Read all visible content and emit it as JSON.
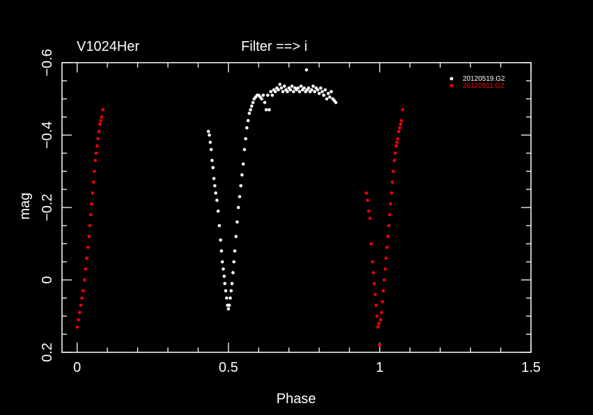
{
  "chart_data": {
    "type": "scatter",
    "title_left": "V1024Her",
    "title_center": "Filter ==> i",
    "xlabel": "Phase",
    "ylabel": "mag",
    "xlim": [
      -0.05,
      1.5
    ],
    "ylim": [
      0.2,
      -0.6
    ],
    "y_inverted": true,
    "x_ticks": [
      0,
      0.5,
      1,
      1.5
    ],
    "x_tick_labels": [
      "0",
      "0.5",
      "1",
      "1.5"
    ],
    "y_ticks": [
      0.2,
      0,
      -0.2,
      -0.4,
      -0.6
    ],
    "y_tick_labels": [
      "0.2",
      "0",
      "−0.2",
      "−0.4",
      "−0.6"
    ],
    "background": "#000000",
    "foreground": "#ffffff",
    "legend_position": "top-right",
    "series": [
      {
        "name": "20120519.G2",
        "color": "#ffffff",
        "points": [
          [
            0.434,
            -0.41
          ],
          [
            0.437,
            -0.4
          ],
          [
            0.44,
            -0.38
          ],
          [
            0.443,
            -0.36
          ],
          [
            0.446,
            -0.33
          ],
          [
            0.449,
            -0.31
          ],
          [
            0.452,
            -0.28
          ],
          [
            0.455,
            -0.26
          ],
          [
            0.458,
            -0.24
          ],
          [
            0.462,
            -0.22
          ],
          [
            0.466,
            -0.19
          ],
          [
            0.47,
            -0.15
          ],
          [
            0.474,
            -0.11
          ],
          [
            0.477,
            -0.08
          ],
          [
            0.48,
            -0.05
          ],
          [
            0.483,
            -0.03
          ],
          [
            0.486,
            -0.01
          ],
          [
            0.488,
            0.01
          ],
          [
            0.491,
            0.03
          ],
          [
            0.494,
            0.05
          ],
          [
            0.497,
            0.07
          ],
          [
            0.5,
            0.08
          ],
          [
            0.503,
            0.07
          ],
          [
            0.506,
            0.05
          ],
          [
            0.509,
            0.03
          ],
          [
            0.512,
            0.01
          ],
          [
            0.515,
            -0.02
          ],
          [
            0.518,
            -0.05
          ],
          [
            0.521,
            -0.08
          ],
          [
            0.525,
            -0.12
          ],
          [
            0.529,
            -0.16
          ],
          [
            0.533,
            -0.2
          ],
          [
            0.537,
            -0.23
          ],
          [
            0.541,
            -0.26
          ],
          [
            0.545,
            -0.29
          ],
          [
            0.549,
            -0.32
          ],
          [
            0.553,
            -0.36
          ],
          [
            0.557,
            -0.39
          ],
          [
            0.561,
            -0.42
          ],
          [
            0.565,
            -0.44
          ],
          [
            0.569,
            -0.46
          ],
          [
            0.573,
            -0.47
          ],
          [
            0.577,
            -0.48
          ],
          [
            0.581,
            -0.49
          ],
          [
            0.585,
            -0.5
          ],
          [
            0.59,
            -0.505
          ],
          [
            0.595,
            -0.51
          ],
          [
            0.6,
            -0.51
          ],
          [
            0.605,
            -0.505
          ],
          [
            0.61,
            -0.5
          ],
          [
            0.615,
            -0.51
          ],
          [
            0.62,
            -0.49
          ],
          [
            0.625,
            -0.47
          ],
          [
            0.63,
            -0.51
          ],
          [
            0.635,
            -0.47
          ],
          [
            0.64,
            -0.52
          ],
          [
            0.645,
            -0.51
          ],
          [
            0.65,
            -0.525
          ],
          [
            0.655,
            -0.52
          ],
          [
            0.66,
            -0.53
          ],
          [
            0.665,
            -0.525
          ],
          [
            0.67,
            -0.54
          ],
          [
            0.675,
            -0.53
          ],
          [
            0.68,
            -0.52
          ],
          [
            0.685,
            -0.535
          ],
          [
            0.69,
            -0.525
          ],
          [
            0.695,
            -0.52
          ],
          [
            0.7,
            -0.53
          ],
          [
            0.705,
            -0.525
          ],
          [
            0.71,
            -0.535
          ],
          [
            0.715,
            -0.52
          ],
          [
            0.72,
            -0.53
          ],
          [
            0.725,
            -0.525
          ],
          [
            0.73,
            -0.53
          ],
          [
            0.735,
            -0.52
          ],
          [
            0.74,
            -0.535
          ],
          [
            0.745,
            -0.525
          ],
          [
            0.75,
            -0.53
          ],
          [
            0.755,
            -0.52
          ],
          [
            0.758,
            -0.58
          ],
          [
            0.76,
            -0.525
          ],
          [
            0.765,
            -0.53
          ],
          [
            0.77,
            -0.52
          ],
          [
            0.775,
            -0.525
          ],
          [
            0.78,
            -0.535
          ],
          [
            0.785,
            -0.52
          ],
          [
            0.79,
            -0.53
          ],
          [
            0.795,
            -0.525
          ],
          [
            0.8,
            -0.515
          ],
          [
            0.805,
            -0.53
          ],
          [
            0.81,
            -0.52
          ],
          [
            0.815,
            -0.51
          ],
          [
            0.82,
            -0.525
          ],
          [
            0.825,
            -0.5
          ],
          [
            0.83,
            -0.515
          ],
          [
            0.835,
            -0.505
          ],
          [
            0.84,
            -0.52
          ],
          [
            0.845,
            -0.5
          ],
          [
            0.85,
            -0.495
          ],
          [
            0.855,
            -0.49
          ]
        ]
      },
      {
        "name": "20120911.G2",
        "color": "#ff0000",
        "points": [
          [
            0.0,
            0.13
          ],
          [
            0.004,
            0.11
          ],
          [
            0.008,
            0.09
          ],
          [
            0.012,
            0.07
          ],
          [
            0.016,
            0.05
          ],
          [
            0.02,
            0.03
          ],
          [
            0.024,
            0.0
          ],
          [
            0.028,
            -0.03
          ],
          [
            0.032,
            -0.06
          ],
          [
            0.036,
            -0.09
          ],
          [
            0.039,
            -0.12
          ],
          [
            0.042,
            -0.15
          ],
          [
            0.045,
            -0.18
          ],
          [
            0.048,
            -0.21
          ],
          [
            0.051,
            -0.24
          ],
          [
            0.054,
            -0.27
          ],
          [
            0.057,
            -0.3
          ],
          [
            0.06,
            -0.33
          ],
          [
            0.063,
            -0.35
          ],
          [
            0.066,
            -0.37
          ],
          [
            0.069,
            -0.39
          ],
          [
            0.072,
            -0.41
          ],
          [
            0.075,
            -0.43
          ],
          [
            0.078,
            -0.44
          ],
          [
            0.081,
            -0.45
          ],
          [
            0.085,
            -0.47
          ],
          [
            0.956,
            -0.24
          ],
          [
            0.96,
            -0.22
          ],
          [
            0.964,
            -0.19
          ],
          [
            0.968,
            -0.17
          ],
          [
            0.972,
            -0.1
          ],
          [
            0.976,
            -0.05
          ],
          [
            0.979,
            -0.02
          ],
          [
            0.982,
            0.01
          ],
          [
            0.985,
            0.04
          ],
          [
            0.988,
            0.07
          ],
          [
            0.991,
            0.1
          ],
          [
            0.994,
            0.13
          ],
          [
            0.997,
            0.12
          ],
          [
            1.0,
            0.18
          ],
          [
            1.003,
            0.11
          ],
          [
            1.006,
            0.09
          ],
          [
            1.009,
            0.06
          ],
          [
            1.012,
            0.03
          ],
          [
            1.015,
            0.0
          ],
          [
            1.018,
            -0.03
          ],
          [
            1.021,
            -0.06
          ],
          [
            1.024,
            -0.09
          ],
          [
            1.027,
            -0.12
          ],
          [
            1.03,
            -0.15
          ],
          [
            1.033,
            -0.18
          ],
          [
            1.036,
            -0.21
          ],
          [
            1.039,
            -0.24
          ],
          [
            1.042,
            -0.27
          ],
          [
            1.045,
            -0.3
          ],
          [
            1.048,
            -0.33
          ],
          [
            1.051,
            -0.35
          ],
          [
            1.054,
            -0.37
          ],
          [
            1.057,
            -0.38
          ],
          [
            1.06,
            -0.39
          ],
          [
            1.063,
            -0.41
          ],
          [
            1.066,
            -0.42
          ],
          [
            1.069,
            -0.43
          ],
          [
            1.072,
            -0.44
          ],
          [
            1.076,
            -0.47
          ]
        ]
      }
    ]
  }
}
